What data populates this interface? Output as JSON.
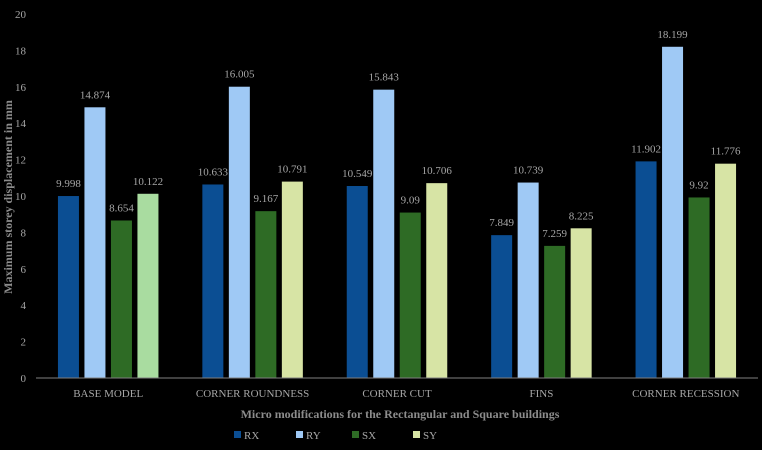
{
  "chart_data": {
    "type": "bar",
    "categories": [
      "BASE MODEL",
      "CORNER ROUNDNESS",
      "CORNER CUT",
      "FINS",
      "CORNER RECESSION"
    ],
    "series": [
      {
        "name": "RX",
        "color": "#0b4e93",
        "values": [
          9.998,
          10.633,
          10.549,
          7.849,
          11.902
        ],
        "labels": [
          "9.998",
          "10.633",
          "10.549",
          "7.849",
          "11.902"
        ]
      },
      {
        "name": "RY",
        "color": "#9fc9f5",
        "values": [
          14.874,
          16.005,
          15.843,
          10.739,
          18.199
        ],
        "labels": [
          "14.874",
          "16.005",
          "15.843",
          "10.739",
          "18.199"
        ]
      },
      {
        "name": "SX",
        "color": "#2e6b25",
        "values": [
          8.654,
          9.167,
          9.09,
          7.259,
          9.92
        ],
        "labels": [
          "8.654",
          "9.167",
          "9.09",
          "7.259",
          "9.92"
        ]
      },
      {
        "name": "SY",
        "color": "#d7e4a5",
        "values": [
          10.122,
          10.791,
          10.706,
          8.225,
          11.776
        ],
        "labels": [
          "10.122",
          "10.791",
          "10.706",
          "8.225",
          "11.776"
        ],
        "first_color": "#a9dca0"
      }
    ],
    "xlabel": "Micro modifications for the Rectangular and Square buildings",
    "ylabel": "Maximum storey displacement in mm",
    "ylim": [
      0,
      20
    ],
    "yticks": [
      0,
      2,
      4,
      6,
      8,
      10,
      12,
      14,
      16,
      18,
      20
    ],
    "grid": false,
    "legend": "bottom"
  }
}
